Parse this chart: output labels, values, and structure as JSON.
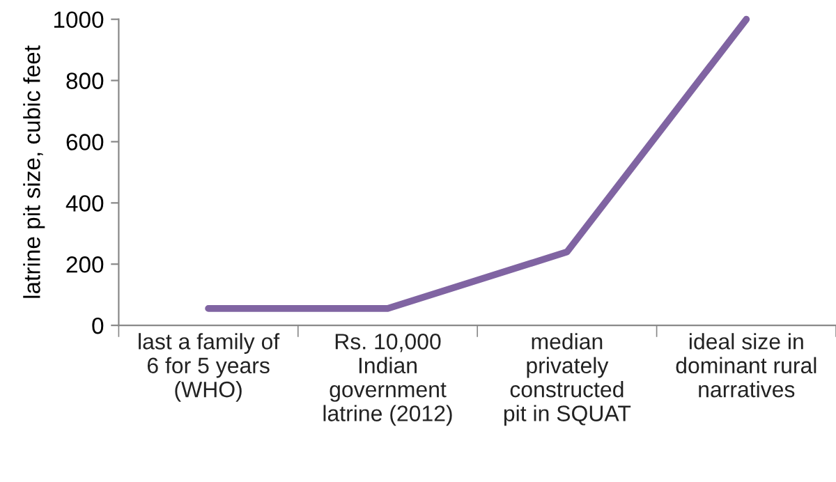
{
  "chart_data": {
    "type": "line",
    "ylabel": "latrine pit size, cubic feet",
    "categories": [
      "last a family of\n6 for 5 years\n(WHO)",
      "Rs. 10,000\nIndian\ngovernment\nlatrine (2012)",
      "median\nprivately\nconstructed\npit in SQUAT",
      "ideal size in\ndominant rural\nnarratives"
    ],
    "series": [
      {
        "color": "#8064a2",
        "values": [
          55,
          55,
          240,
          1000
        ]
      }
    ],
    "ylim": [
      0,
      1000
    ],
    "yticks": [
      0,
      200,
      400,
      600,
      800,
      1000
    ],
    "grid": false,
    "legend": false,
    "marker": "none",
    "line_style": "solid"
  }
}
